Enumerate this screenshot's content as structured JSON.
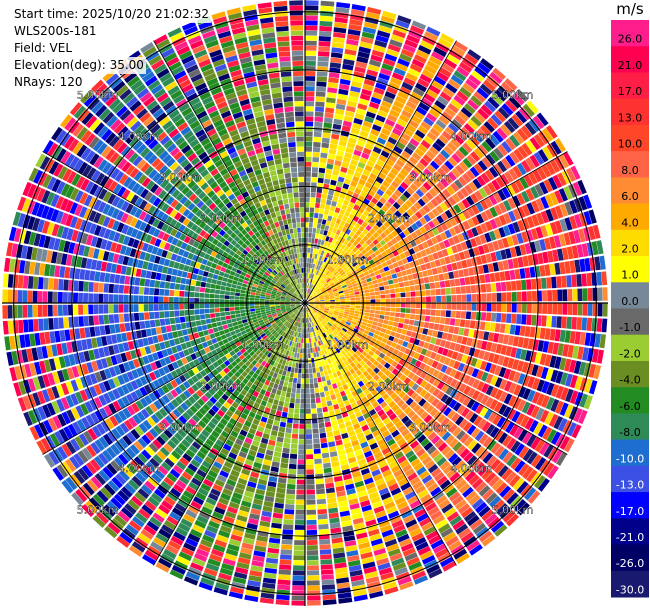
{
  "info": {
    "start_time": "Start time: 2025/10/20 21:02:32",
    "instrument": "WLS200s-181",
    "field": "Field: VEL",
    "elevation": "Elevation(deg): 35.00",
    "nrays": "NRays: 120"
  },
  "colorbar": {
    "unit": "m/s",
    "ticks": [
      "26.0",
      "21.0",
      "17.0",
      "13.0",
      "10.0",
      "8.0",
      "6.0",
      "4.0",
      "2.0",
      "1.0",
      "0.0",
      "-1.0",
      "-2.0",
      "-4.0",
      "-6.0",
      "-8.0",
      "-10.0",
      "-13.0",
      "-17.0",
      "-21.0",
      "-26.0",
      "-30.0"
    ],
    "colors": [
      "#ff1e8c",
      "#ff0050",
      "#ff1e46",
      "#ff3232",
      "#ff4628",
      "#ff6446",
      "#ff8c32",
      "#ffaa00",
      "#ffdc00",
      "#ffff00",
      "#778899",
      "#696969",
      "#9acd32",
      "#6b8e23",
      "#228b22",
      "#2e8b57",
      "#1e6ed2",
      "#3c50e6",
      "#0000ff",
      "#00008b",
      "#000064",
      "#191970"
    ]
  },
  "chart_data": {
    "type": "polar-ppi",
    "field": "VEL",
    "units": "m/s",
    "nrays": 120,
    "elevation_deg": 35.0,
    "range_ring_labels": [
      "1.00km",
      "2.00km",
      "3.00km",
      "4.00km",
      "5.00km"
    ],
    "range_rings_km": [
      1,
      2,
      3,
      4,
      5
    ],
    "color_scale_boundaries_ms": [
      -30,
      -26,
      -21,
      -17,
      -13,
      -10,
      -8,
      -6,
      -4,
      -2,
      -1,
      0,
      1,
      2,
      4,
      6,
      8,
      10,
      13,
      17,
      21,
      26,
      30
    ],
    "pattern": "approaching flow (negative, blue) to the west, receding flow (positive, red/orange) to the east; noisy returns beyond about 3 km",
    "azimuth_lines_deg": [
      0,
      30,
      60,
      90,
      120,
      150,
      180,
      210,
      240,
      270,
      300,
      330
    ]
  }
}
